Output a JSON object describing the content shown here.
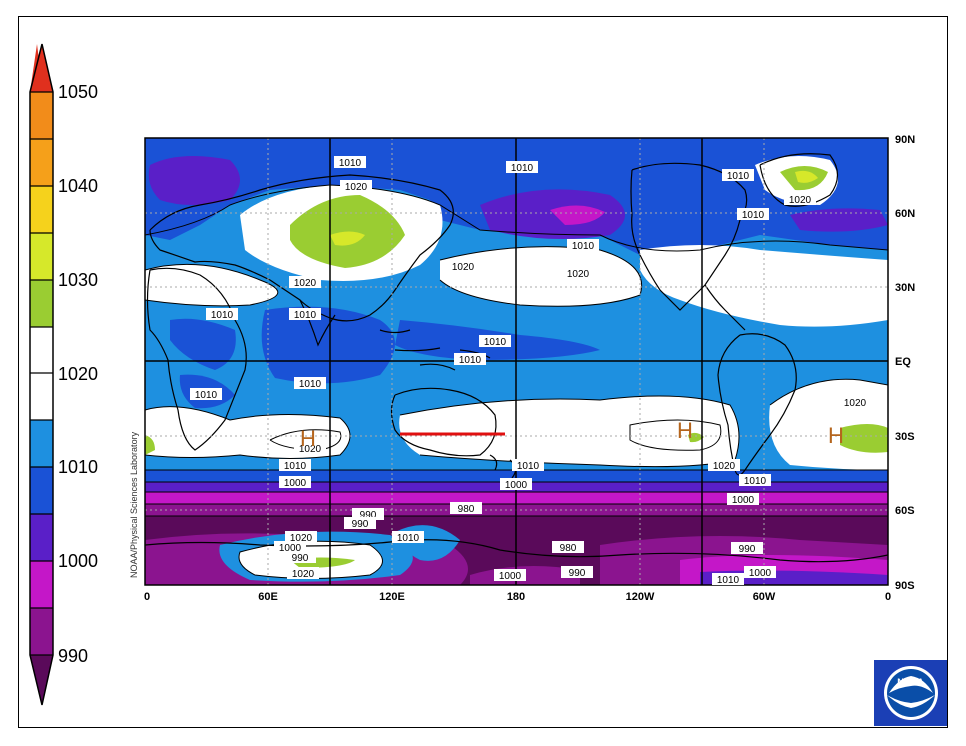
{
  "colorbar": {
    "labels": [
      "1050",
      "1040",
      "1030",
      "1020",
      "1010",
      "1000",
      "990"
    ],
    "colors": {
      "c1045": "#e0301e",
      "c1040": "#f28c1a",
      "c1035": "#f5d21c",
      "c1030a": "#d6e82a",
      "c1030": "#9acd32",
      "c1020w": "#ffffff",
      "c1015": "#1e90e0",
      "c1010": "#1a52d6",
      "c1005": "#5a1fc8",
      "c1000": "#c417c8",
      "c995": "#8b148f",
      "c990": "#5a0a5a"
    }
  },
  "axes": {
    "x_ticks": [
      "0",
      "60E",
      "120E",
      "180",
      "120W",
      "60W",
      "0"
    ],
    "y_ticks": [
      "90N",
      "60N",
      "30N",
      "EQ",
      "30S",
      "60S",
      "90S"
    ]
  },
  "contour_labels": [
    "1010",
    "1010",
    "1010",
    "1020",
    "1020",
    "1010",
    "1020",
    "1020",
    "1010",
    "1010",
    "1010",
    "1010",
    "1010",
    "1010",
    "1010",
    "1010",
    "1010",
    "1020",
    "1020",
    "1010",
    "1000",
    "1000",
    "1000",
    "990",
    "990",
    "980",
    "980",
    "1010",
    "1000",
    "990",
    "1020",
    "1020",
    "990",
    "990",
    "1000",
    "1010",
    "1020",
    "1020",
    "1000"
  ],
  "highs": [
    "H",
    "H",
    "H"
  ],
  "credit": "NOAA/Physical Sciences Laboratory",
  "logo_text": "NOAA"
}
